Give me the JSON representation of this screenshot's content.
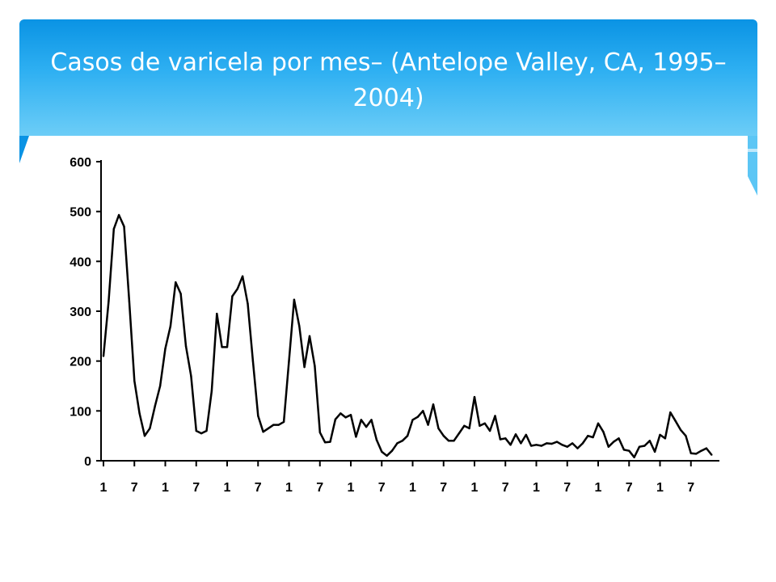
{
  "slide": {
    "title": "Casos de varicela por mes– (Antelope Valley, CA, 1995–2004)",
    "accent_color": "#0a93e4"
  },
  "chart_data": {
    "type": "line",
    "title": "",
    "xlabel": "",
    "ylabel": "",
    "ylim": [
      0,
      600
    ],
    "yticks": [
      "0",
      "100",
      "200",
      "300",
      "400",
      "500",
      "600"
    ],
    "xticks": [
      "1",
      "7",
      "1",
      "7",
      "1",
      "7",
      "1",
      "7",
      "1",
      "7",
      "1",
      "7",
      "1",
      "7",
      "1",
      "7",
      "1",
      "7",
      "1",
      "7"
    ],
    "grid": false,
    "series": [
      {
        "values": [
          210,
          320,
          465,
          493,
          470,
          320,
          160,
          95,
          50,
          65,
          110,
          150,
          225,
          270,
          358,
          335,
          230,
          170,
          60,
          55,
          60,
          140,
          295,
          228,
          228,
          330,
          345,
          370,
          315,
          200,
          90,
          58,
          65,
          72,
          72,
          78,
          200,
          323,
          270,
          188,
          250,
          190,
          57,
          37,
          38,
          83,
          95,
          87,
          92,
          48,
          82,
          68,
          82,
          42,
          18,
          10,
          20,
          35,
          40,
          50,
          82,
          88,
          100,
          72,
          113,
          65,
          50,
          40,
          40,
          55,
          70,
          65,
          128,
          70,
          75,
          60,
          90,
          43,
          45,
          32,
          53,
          35,
          52,
          30,
          32,
          30,
          35,
          34,
          38,
          32,
          28,
          35,
          25,
          35,
          50,
          47,
          75,
          58,
          28,
          38,
          45,
          22,
          20,
          7,
          28,
          30,
          40,
          18,
          52,
          45,
          97,
          80,
          62,
          50,
          15,
          14,
          20,
          25,
          12
        ]
      }
    ]
  }
}
